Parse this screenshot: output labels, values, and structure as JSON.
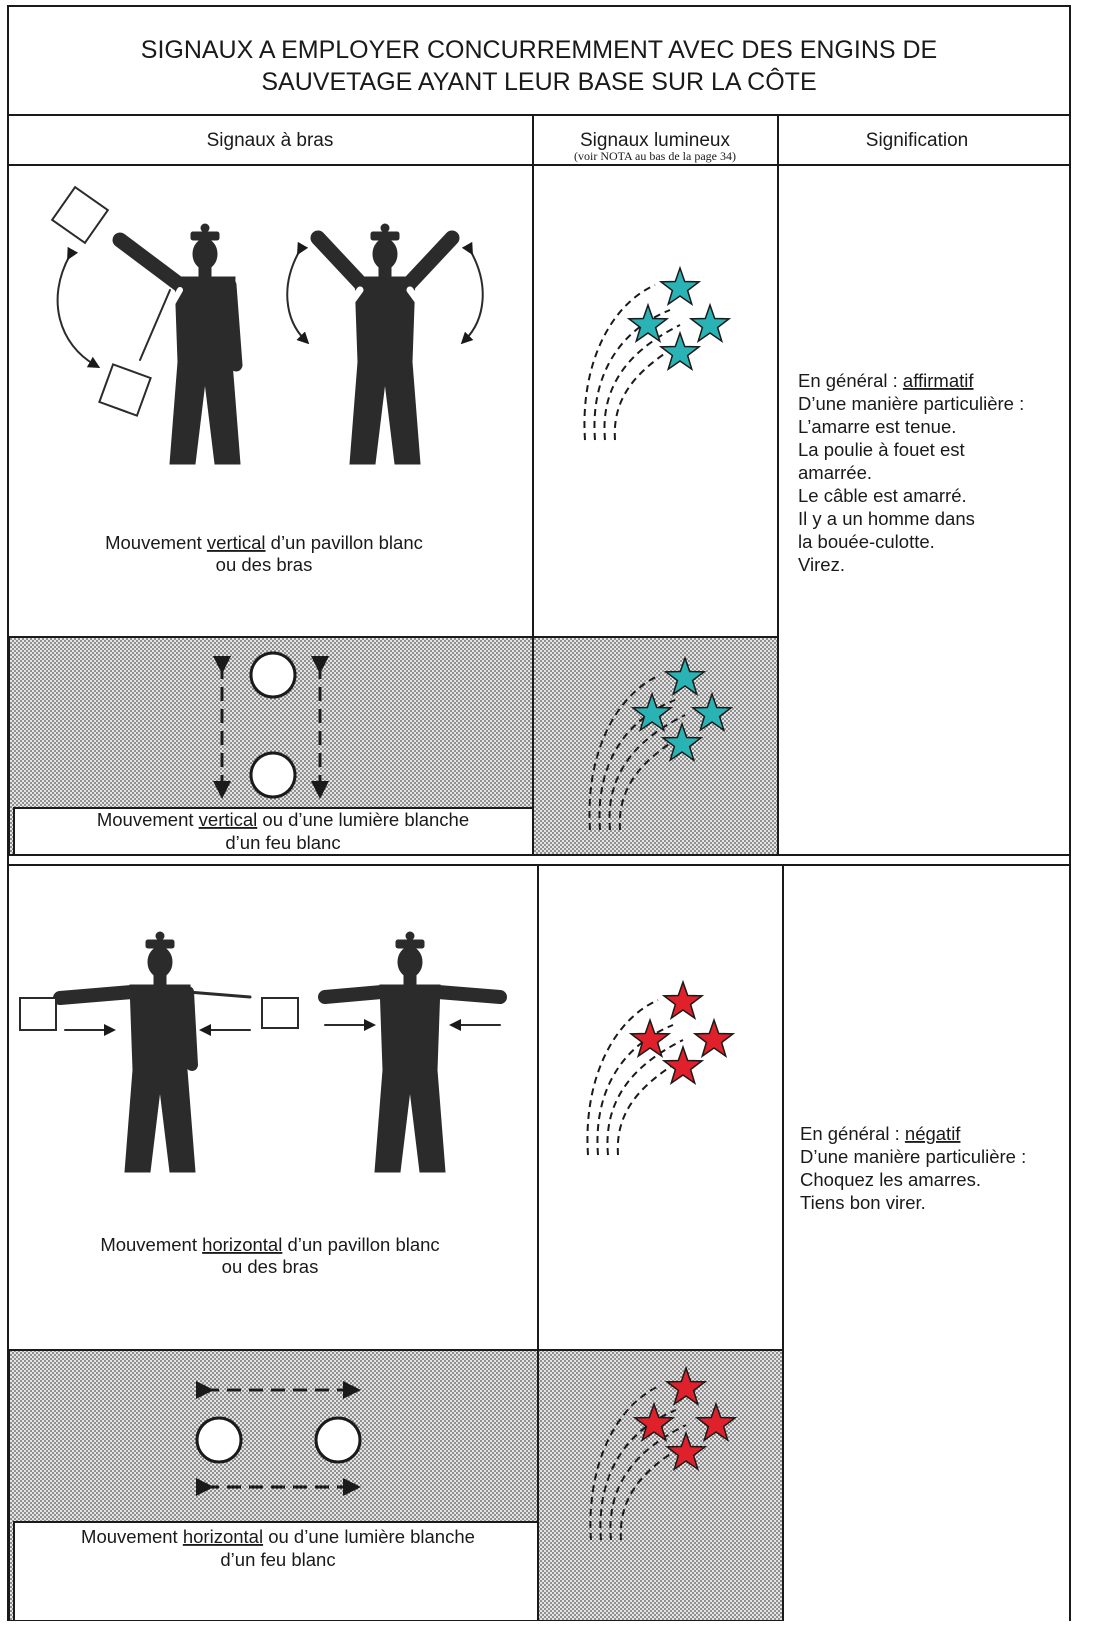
{
  "header": {
    "title_lines": [
      "SIGNAUX A EMPLOYER CONCURREMMENT AVEC DES ENGINS DE",
      "SAUVETAGE AYANT LEUR BASE SUR LA CÔTE"
    ]
  },
  "table": {
    "columns": [
      "Signaux à bras",
      "Signaux lumineux",
      "Signification"
    ],
    "column_note": "(voir NOTA au bas de la page 34)",
    "sections": [
      {
        "day_caption": {
          "before": "Mouvement ",
          "underlined": "vertical",
          "after": " d’un pavillon blanc",
          "line2": "ou des bras"
        },
        "night_caption": {
          "before": "Mouvement ",
          "underlined": "vertical",
          "after": " ou d’une lumière blanche",
          "line2": "d’un feu blanc"
        },
        "meaning": {
          "label": "En général : ",
          "keyword": "affirmatif",
          "lines": [
            "D’une manière particulière :",
            "L’amarre est tenue.",
            "La poulie à fouet est",
            "amarrée.",
            "Le câble est amarré.",
            "Il y a un homme dans",
            "la bouée-culotte.",
            "Virez."
          ]
        }
      },
      {
        "day_caption": {
          "before": "Mouvement ",
          "underlined": "horizontal",
          "after": " d’un pavillon blanc",
          "line2": "ou des bras"
        },
        "night_caption": {
          "before": "Mouvement ",
          "underlined": "horizontal",
          "after": " ou d’une lumière blanche",
          "line2": "d’un feu blanc"
        },
        "meaning": {
          "label": "En général : ",
          "keyword": "négatif",
          "lines": [
            "D’une manière particulière :",
            "Choquez les amarres.",
            "Tiens bon virer."
          ]
        }
      }
    ]
  }
}
